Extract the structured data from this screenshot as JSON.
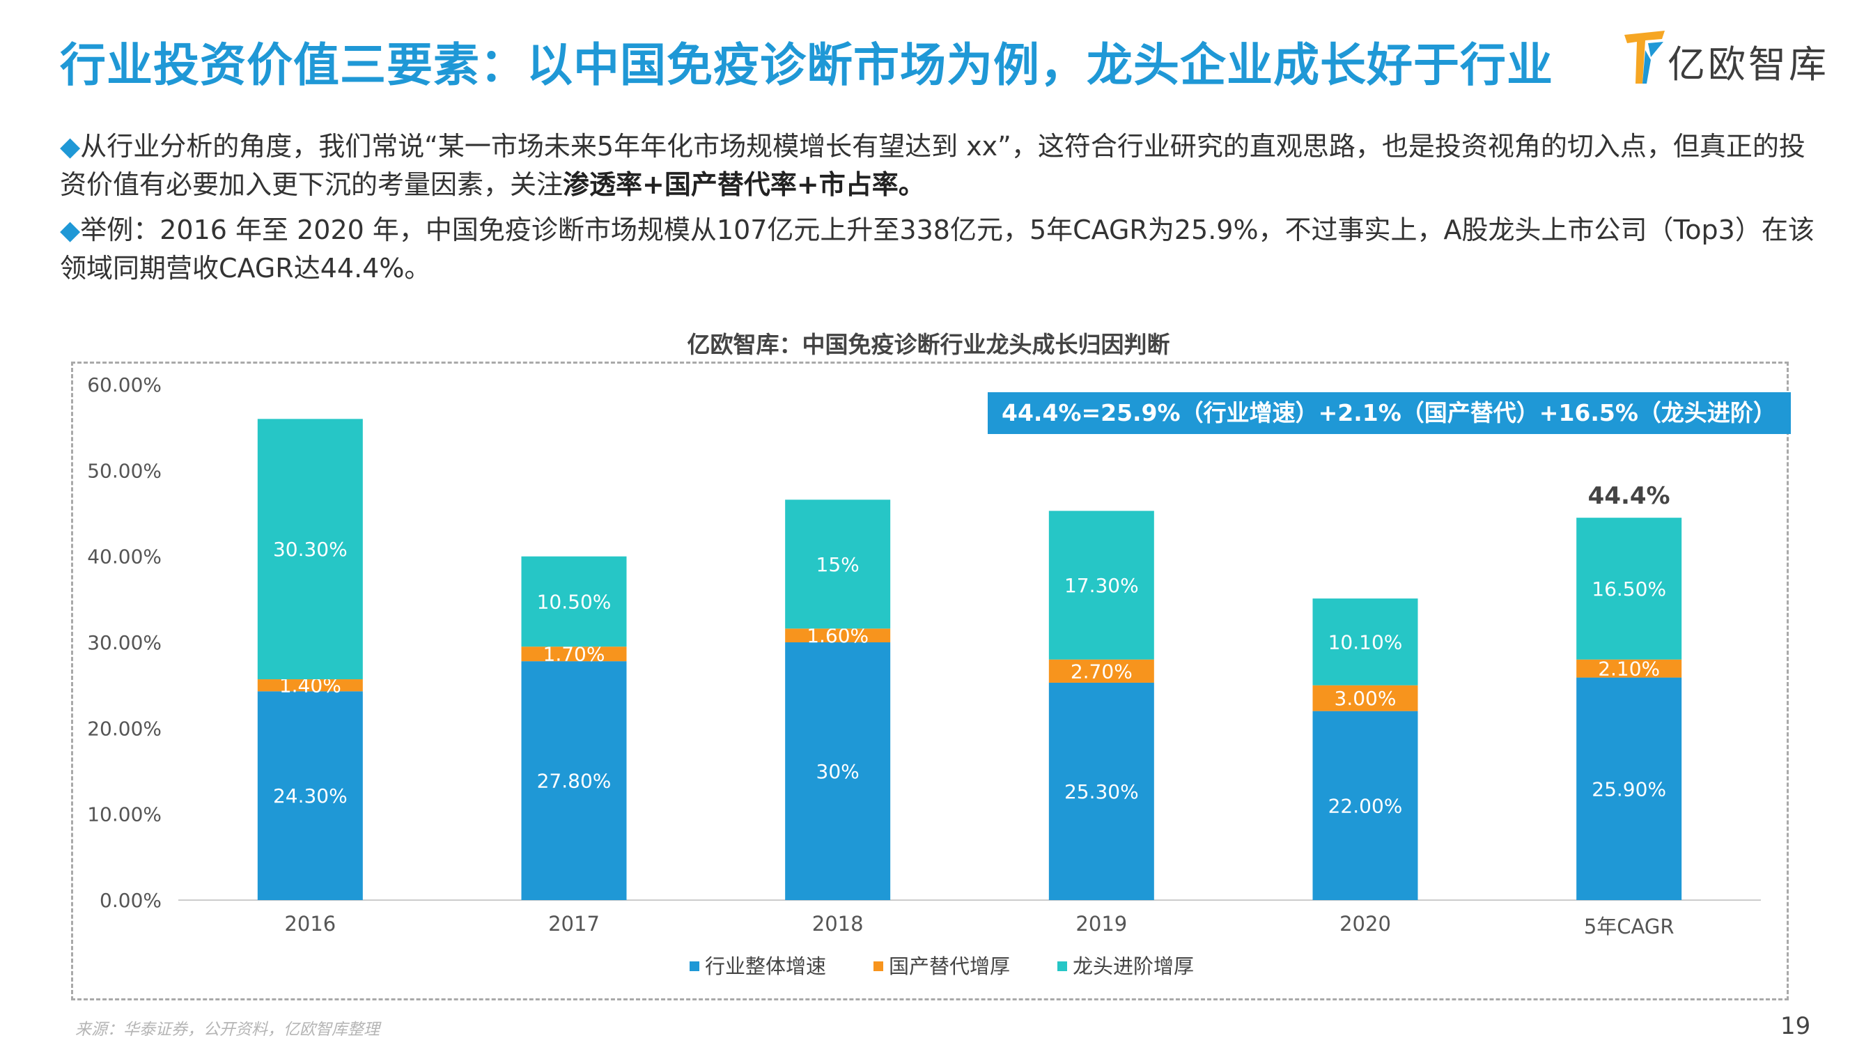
{
  "header": {
    "title": "行业投资价值三要素：以中国免疫诊断市场为例，龙头企业成长好于行业",
    "logo_text": "亿欧智库",
    "logo_icon": "yiou-logo-icon"
  },
  "bullets": [
    {
      "marker": "◆",
      "text": "从行业分析的角度，我们常说“某一市场未来5年年化市场规模增长有望达到 xx”，这符合行业研究的直观思路，也是投资视角的切入点，但真正的投资价值有必要加入更下沉的考量因素，关注",
      "emphasis": "渗透率+国产替代率+市占率。"
    },
    {
      "marker": "◆",
      "text": "举例：2016 年至 2020 年，中国免疫诊断市场规模从107亿元上升至338亿元，5年CAGR为25.9%，不过事实上，A股龙头上市公司（Top3）在该领域同期营收CAGR达44.4%。"
    }
  ],
  "chart_title": "亿欧智库：中国免疫诊断行业龙头成长归因判断",
  "banner": "44.4%=25.9%（行业增速）+2.1%（国产替代）+16.5%（龙头进阶）",
  "chart_data": {
    "type": "bar",
    "stacked": true,
    "categories": [
      "2016",
      "2017",
      "2018",
      "2019",
      "2020",
      "5年CAGR"
    ],
    "series": [
      {
        "name": "行业整体增速",
        "values": [
          24.3,
          27.8,
          30,
          25.3,
          22.0,
          25.9
        ],
        "labels": [
          "24.30%",
          "27.80%",
          "30%",
          "25.30%",
          "22.00%",
          "25.90%"
        ],
        "color": "#1f98d6"
      },
      {
        "name": "国产替代增厚",
        "values": [
          1.4,
          1.7,
          1.6,
          2.7,
          3.0,
          2.1
        ],
        "labels": [
          "1.40%",
          "1.70%",
          "1.60%",
          "2.70%",
          "3.00%",
          "2.10%"
        ],
        "color": "#f7941d"
      },
      {
        "name": "龙头进阶增厚",
        "values": [
          30.3,
          10.5,
          15,
          17.3,
          10.1,
          16.5
        ],
        "labels": [
          "30.30%",
          "10.50%",
          "15%",
          "17.30%",
          "10.10%",
          "16.50%"
        ],
        "color": "#26c6c6"
      }
    ],
    "total_annotation": {
      "category": "5年CAGR",
      "label": "44.4%"
    },
    "yticks": [
      "0.00%",
      "10.00%",
      "20.00%",
      "30.00%",
      "40.00%",
      "50.00%",
      "60.00%"
    ],
    "ylim": [
      0,
      60
    ],
    "grid": false,
    "legend": "bottom"
  },
  "footer": {
    "source": "来源：华泰证券，公开资料，亿欧智库整理",
    "page": "19"
  }
}
